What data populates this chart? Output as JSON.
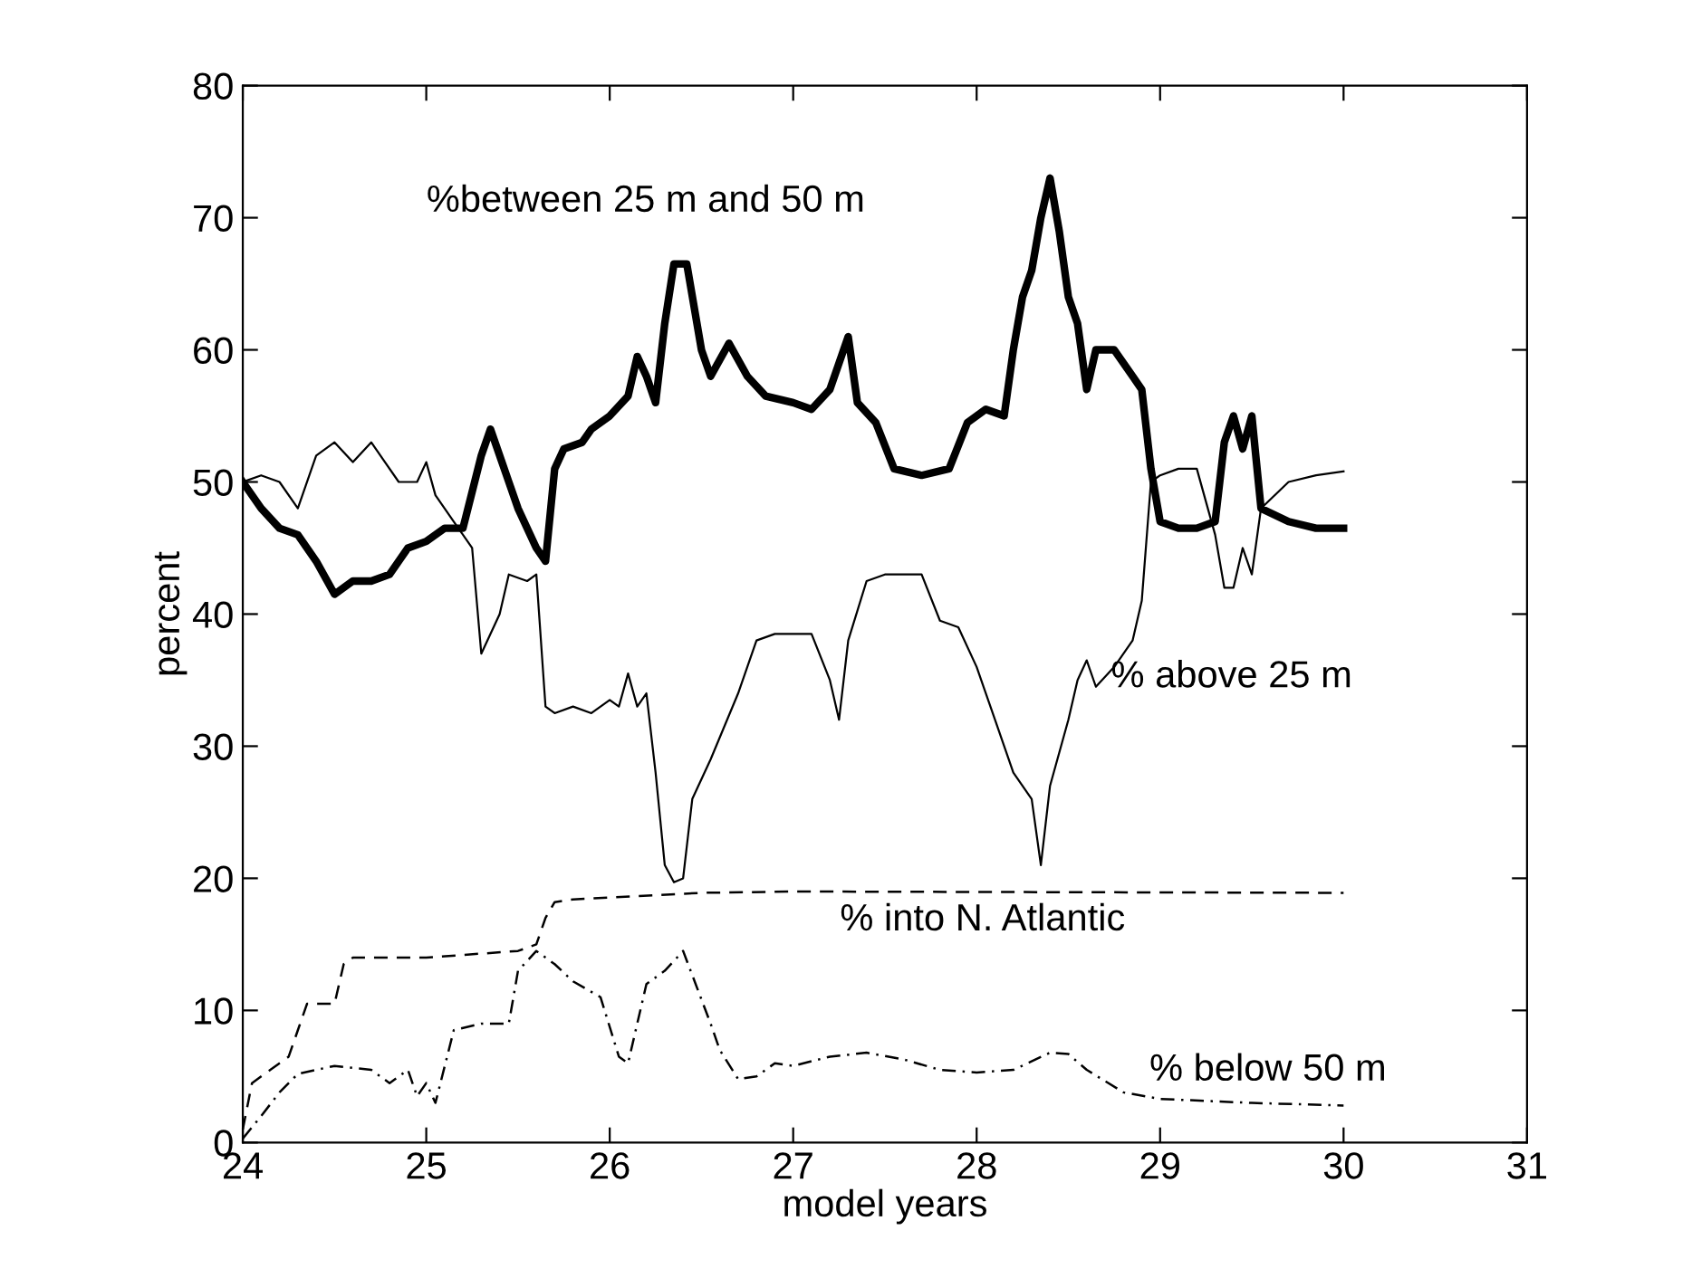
{
  "chart_data": {
    "type": "line",
    "xlabel": "model years",
    "ylabel": "percent",
    "xlim": [
      24,
      31
    ],
    "ylim": [
      0,
      80
    ],
    "xticks": [
      24,
      25,
      26,
      27,
      28,
      29,
      30,
      31
    ],
    "yticks": [
      0,
      10,
      20,
      30,
      40,
      50,
      60,
      70,
      80
    ],
    "grid": false,
    "series": [
      {
        "color": "#000000",
        "line_style": "solid",
        "x": [
          24.0,
          24.1,
          24.2,
          24.3,
          24.4,
          24.5,
          24.6,
          24.7,
          24.8,
          24.9,
          25.0,
          25.1,
          25.2,
          25.3,
          25.35,
          25.45,
          25.5,
          25.6,
          25.65,
          25.7,
          25.75,
          25.85,
          25.9,
          26.0,
          26.1,
          26.15,
          26.2,
          26.25,
          26.3,
          26.35,
          26.42,
          26.5,
          26.55,
          26.65,
          26.75,
          26.85,
          27.0,
          27.1,
          27.2,
          27.3,
          27.35,
          27.45,
          27.55,
          27.7,
          27.85,
          27.95,
          28.05,
          28.15,
          28.2,
          28.25,
          28.3,
          28.35,
          28.4,
          28.45,
          28.5,
          28.55,
          28.6,
          28.65,
          28.75,
          28.85,
          28.9,
          28.95,
          29.0,
          29.1,
          29.2,
          29.3,
          29.35,
          29.4,
          29.45,
          29.5,
          29.55,
          29.7,
          29.85,
          30.0
        ],
        "values": [
          50,
          48,
          46.5,
          46,
          44,
          41.5,
          42.5,
          42.5,
          43,
          45,
          45.5,
          46.5,
          46.5,
          52,
          54,
          50,
          48,
          45,
          44,
          51,
          52.5,
          53,
          54,
          55,
          56.5,
          59.5,
          58,
          56,
          62,
          66.5,
          66.5,
          60,
          58,
          60.5,
          58,
          56.5,
          56,
          55.5,
          57,
          61,
          56,
          54.5,
          51,
          50.5,
          51,
          54.5,
          55.5,
          55,
          60,
          64,
          66,
          70,
          73,
          69,
          64,
          62,
          57,
          60,
          60,
          58,
          57,
          51,
          47,
          46.5,
          46.5,
          47,
          53,
          55,
          52.5,
          55,
          48,
          47,
          46.5,
          46.5
        ]
      },
      {
        "color": "#000000",
        "line_style": "solid",
        "x": [
          24.0,
          24.1,
          24.2,
          24.3,
          24.4,
          24.5,
          24.6,
          24.7,
          24.85,
          24.95,
          25.0,
          25.05,
          25.15,
          25.25,
          25.3,
          25.4,
          25.45,
          25.55,
          25.6,
          25.65,
          25.7,
          25.8,
          25.9,
          26.0,
          26.05,
          26.1,
          26.15,
          26.2,
          26.25,
          26.3,
          26.35,
          26.4,
          26.45,
          26.55,
          26.7,
          26.8,
          26.9,
          27.1,
          27.2,
          27.25,
          27.3,
          27.4,
          27.5,
          27.7,
          27.8,
          27.9,
          28.0,
          28.1,
          28.2,
          28.3,
          28.35,
          28.4,
          28.5,
          28.55,
          28.6,
          28.65,
          28.75,
          28.85,
          28.9,
          28.95,
          29.0,
          29.1,
          29.2,
          29.3,
          29.35,
          29.4,
          29.45,
          29.5,
          29.55,
          29.7,
          29.85,
          30.0
        ],
        "values": [
          50,
          50.5,
          50,
          48,
          52,
          53,
          51.5,
          53,
          50,
          50,
          51.5,
          49,
          47,
          45,
          37,
          40,
          43,
          42.5,
          43,
          33,
          32.5,
          33,
          32.5,
          33.5,
          33,
          35.5,
          33,
          34,
          28,
          21,
          19.7,
          20,
          26,
          29,
          34,
          38,
          38.5,
          38.5,
          35,
          32,
          38,
          42.5,
          43,
          43,
          39.5,
          39,
          36,
          32,
          28,
          26,
          21,
          27,
          32,
          35,
          36.5,
          34.5,
          36,
          38,
          41,
          50,
          50.5,
          51,
          51,
          46,
          42,
          42,
          45,
          43,
          48,
          50,
          50.5,
          50.8
        ]
      },
      {
        "color": "#000000",
        "line_style": "dashed",
        "x": [
          24.0,
          24.05,
          24.15,
          24.25,
          24.3,
          24.35,
          24.5,
          24.55,
          24.6,
          25.0,
          25.5,
          25.6,
          25.65,
          25.7,
          25.8,
          26.5,
          27.0,
          30.0
        ],
        "values": [
          1,
          4.5,
          5.5,
          6.5,
          8.5,
          10.5,
          10.5,
          13.5,
          14,
          14,
          14.5,
          15,
          17,
          18.2,
          18.4,
          18.9,
          19,
          18.9
        ]
      },
      {
        "color": "#000000",
        "line_style": "dashdot",
        "x": [
          24.0,
          24.1,
          24.2,
          24.3,
          24.5,
          24.7,
          24.8,
          24.9,
          24.95,
          25.0,
          25.05,
          25.15,
          25.3,
          25.45,
          25.5,
          25.6,
          25.7,
          25.8,
          25.95,
          26.05,
          26.1,
          26.2,
          26.3,
          26.4,
          26.55,
          26.6,
          26.7,
          26.8,
          26.9,
          27.0,
          27.2,
          27.4,
          27.6,
          27.8,
          28.0,
          28.2,
          28.4,
          28.5,
          28.6,
          28.8,
          29.0,
          29.5,
          30.0
        ],
        "values": [
          0.3,
          2,
          3.8,
          5.2,
          5.8,
          5.5,
          4.5,
          5.5,
          3.5,
          4.5,
          3,
          8.5,
          9,
          9,
          13,
          14.5,
          13.5,
          12.2,
          11,
          6.5,
          6,
          12,
          13,
          14.5,
          9,
          7,
          4.8,
          5,
          6,
          5.8,
          6.5,
          6.8,
          6.3,
          5.5,
          5.3,
          5.5,
          6.8,
          6.7,
          5.5,
          3.8,
          3.3,
          3.0,
          2.8
        ]
      }
    ],
    "annotations": [
      "%between 25 m and 50 m",
      "% above 25 m",
      "% into N. Atlantic",
      "% below 50 m"
    ]
  }
}
